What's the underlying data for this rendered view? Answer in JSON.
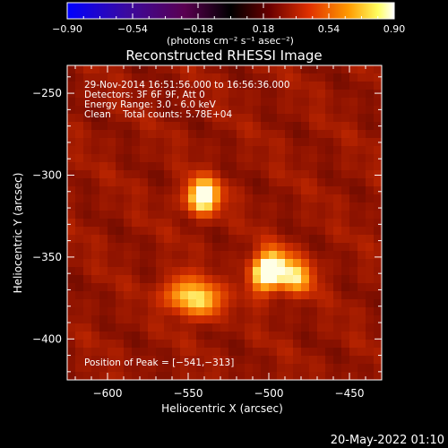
{
  "colors": {
    "background": "#000000",
    "axes": "#ffffff",
    "colormap": [
      "#0000ff",
      "#3a0aa0",
      "#5a0050",
      "#000000",
      "#6a0000",
      "#e03000",
      "#ff9a00",
      "#ffff60",
      "#ffffff"
    ]
  },
  "chart_data": {
    "type": "heatmap",
    "title": "Reconstructed RHESSI Image",
    "xlabel": "Heliocentric X (arcsec)",
    "ylabel": "Heliocentric Y (arcsec)",
    "xlim": [
      -625,
      -430
    ],
    "ylim": [
      -425,
      -233
    ],
    "xticks": [
      -600,
      -550,
      -500,
      -450
    ],
    "yticks": [
      -250,
      -300,
      -350,
      -400
    ],
    "xtick_labels": [
      "−600",
      "−550",
      "−500",
      "−450"
    ],
    "ytick_labels": [
      "−250",
      "−300",
      "−350",
      "−400"
    ],
    "colorbar": {
      "range": [
        -0.9,
        0.9
      ],
      "ticks": [
        -0.9,
        -0.54,
        -0.18,
        0.18,
        0.54,
        0.9
      ],
      "tick_labels": [
        "−0.90",
        "−0.54",
        "−0.18",
        "0.18",
        "0.54",
        "0.90"
      ],
      "unit_label": "(photons cm⁻² s⁻¹ asec⁻²)"
    },
    "annotations": [
      "29-Nov-2014 16:51:56.000 to 16:56:36.000",
      "Detectors: 3F 6F 9F, Att 0",
      "Energy Range: 3.0 - 6.0 keV",
      "Clean    Total counts: 5.78E+04"
    ],
    "peak_label": "Position of Peak = [−541,−313]",
    "sources": [
      {
        "x": -541,
        "y": -313,
        "intensity": 0.9
      },
      {
        "x": -540,
        "y": -377,
        "intensity": 0.62
      },
      {
        "x": -555,
        "y": -372,
        "intensity": 0.55
      },
      {
        "x": -503,
        "y": -363,
        "intensity": 0.62
      },
      {
        "x": -497,
        "y": -354,
        "intensity": 0.58
      },
      {
        "x": -482,
        "y": -362,
        "intensity": 0.55
      }
    ]
  },
  "footer": {
    "date": "20-May-2022 01:10"
  }
}
